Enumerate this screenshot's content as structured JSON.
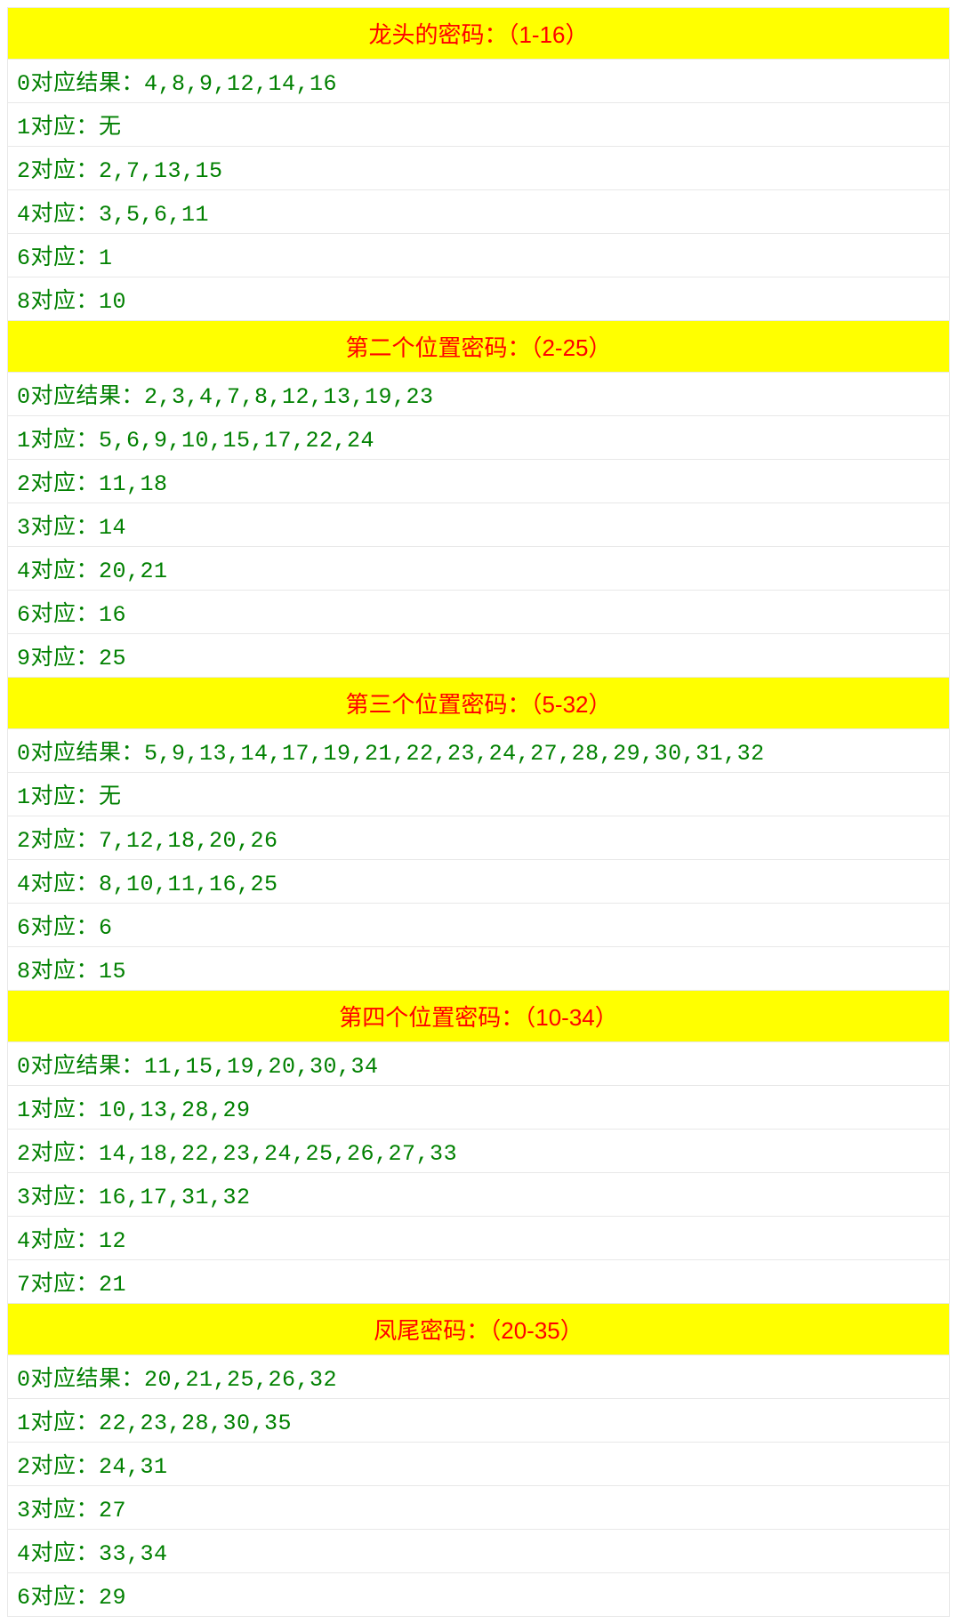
{
  "colors": {
    "header_bg": "#ffff00",
    "header_text": "#ff0000",
    "row_bg": "#ffffff",
    "row_text": "#008000",
    "border": "#e8e8e8"
  },
  "typography": {
    "header_fontsize": 26,
    "row_fontsize": 25,
    "font_family": "Microsoft YaHei"
  },
  "sections": [
    {
      "title": "龙头的密码：（1-16）",
      "rows": [
        "0对应结果：4,8,9,12,14,16",
        "1对应：无",
        "2对应：2,7,13,15",
        "4对应：3,5,6,11",
        "6对应：1",
        "8对应：10"
      ]
    },
    {
      "title": "第二个位置密码：（2-25）",
      "rows": [
        "0对应结果：2,3,4,7,8,12,13,19,23",
        "1对应：5,6,9,10,15,17,22,24",
        "2对应：11,18",
        "3对应：14",
        "4对应：20,21",
        "6对应：16",
        "9对应：25"
      ]
    },
    {
      "title": "第三个位置密码：（5-32）",
      "rows": [
        "0对应结果：5,9,13,14,17,19,21,22,23,24,27,28,29,30,31,32",
        "1对应：无",
        "2对应：7,12,18,20,26",
        "4对应：8,10,11,16,25",
        "6对应：6",
        "8对应：15"
      ]
    },
    {
      "title": "第四个位置密码：（10-34）",
      "rows": [
        "0对应结果：11,15,19,20,30,34",
        "1对应：10,13,28,29",
        "2对应：14,18,22,23,24,25,26,27,33",
        "3对应：16,17,31,32",
        "4对应：12",
        "7对应：21"
      ]
    },
    {
      "title": "凤尾密码：（20-35）",
      "rows": [
        "0对应结果：20,21,25,26,32",
        "1对应：22,23,28,30,35",
        "2对应：24,31",
        "3对应：27",
        "4对应：33,34",
        "6对应：29"
      ]
    }
  ]
}
